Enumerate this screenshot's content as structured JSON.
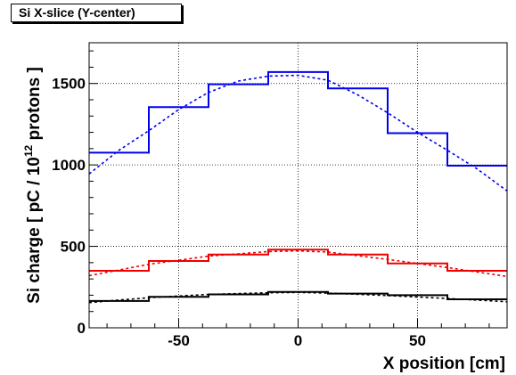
{
  "title": "Si X-slice (Y-center)",
  "chart_data": {
    "type": "line",
    "title": "Si X-slice (Y-center)",
    "xlabel": "X position [cm]",
    "ylabel_parts": {
      "before": "Si charge [ pC / 10",
      "superscript": "12",
      "after": " protons ]"
    },
    "xlim": [
      -87.5,
      87.5
    ],
    "ylim": [
      0,
      1750
    ],
    "xticks": [
      -50,
      0,
      50
    ],
    "yticks": [
      0,
      500,
      1000,
      1500
    ],
    "grid": true,
    "bin_edges": [
      -87.5,
      -62.5,
      -37.5,
      -12.5,
      12.5,
      37.5,
      62.5,
      87.5
    ],
    "series": [
      {
        "color": "#0000ee",
        "values": [
          1075,
          1355,
          1495,
          1570,
          1470,
          1195,
          995
        ],
        "fit_x": [
          -87.5,
          -75,
          -62.5,
          -50,
          -37.5,
          -25,
          -12.5,
          0,
          12.5,
          25,
          37.5,
          50,
          62.5,
          75,
          87.5
        ],
        "fit_y": [
          945,
          1090,
          1210,
          1340,
          1445,
          1515,
          1545,
          1550,
          1520,
          1430,
          1320,
          1200,
          1090,
          975,
          840
        ]
      },
      {
        "color": "#ee0000",
        "values": [
          350,
          410,
          450,
          480,
          450,
          395,
          350
        ],
        "fit_x": [
          -87.5,
          -62.5,
          -37.5,
          -12.5,
          0,
          12.5,
          37.5,
          62.5,
          87.5
        ],
        "fit_y": [
          320,
          390,
          440,
          468,
          472,
          465,
          420,
          370,
          315
        ]
      },
      {
        "color": "#000000",
        "values": [
          165,
          190,
          205,
          220,
          210,
          200,
          175
        ],
        "fit_x": [
          -87.5,
          -62.5,
          -37.5,
          -12.5,
          0,
          12.5,
          37.5,
          62.5,
          87.5
        ],
        "fit_y": [
          155,
          185,
          205,
          215,
          217,
          213,
          198,
          180,
          160
        ]
      }
    ]
  }
}
